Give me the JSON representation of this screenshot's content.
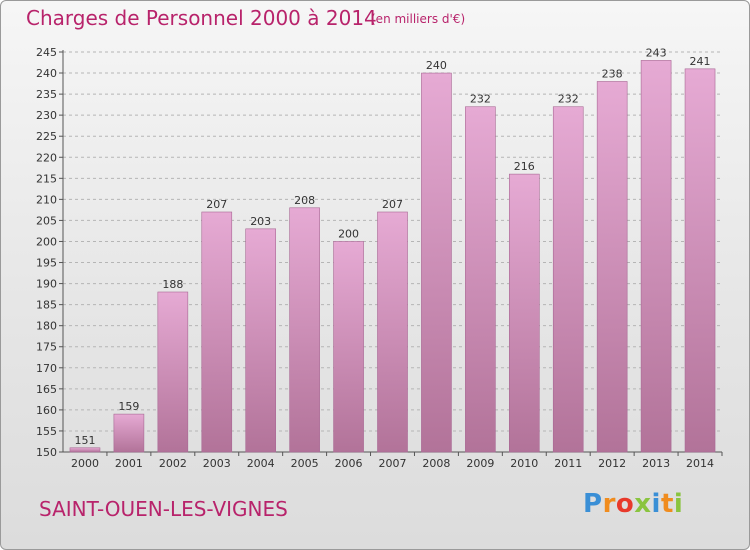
{
  "header": {
    "title": "Charges de Personnel 2000 à 2014",
    "unit_note": "(en milliers d'€)"
  },
  "footer": {
    "commune": "SAINT-OUEN-LES-VIGNES",
    "logo_letters": [
      "P",
      "r",
      "o",
      "x",
      "i",
      "t",
      "i"
    ],
    "logo_colors": [
      "#3a8fd6",
      "#f08c1e",
      "#e8392b",
      "#8ac43f",
      "#3a8fd6",
      "#f08c1e",
      "#8ac43f"
    ]
  },
  "colors": {
    "bar_top": "#e6aad4",
    "bar_bottom": "#b27399",
    "bar_edge": "#a86894",
    "text_accent": "#b8236b"
  },
  "chart_data": {
    "type": "bar",
    "categories": [
      "2000",
      "2001",
      "2002",
      "2003",
      "2004",
      "2005",
      "2006",
      "2007",
      "2008",
      "2009",
      "2010",
      "2011",
      "2012",
      "2013",
      "2014"
    ],
    "values": [
      151,
      159,
      188,
      207,
      203,
      208,
      200,
      207,
      240,
      232,
      216,
      232,
      238,
      243,
      241
    ],
    "title": "Charges de Personnel 2000 à 2014",
    "subtitle": "(en milliers d'€)",
    "xlabel": "",
    "ylabel": "",
    "ylim": [
      150,
      245
    ],
    "yticks": [
      150,
      155,
      160,
      165,
      170,
      175,
      180,
      185,
      190,
      195,
      200,
      205,
      210,
      215,
      220,
      225,
      230,
      235,
      240,
      245
    ],
    "grid": "horizontal dashed",
    "data_labels": true
  }
}
